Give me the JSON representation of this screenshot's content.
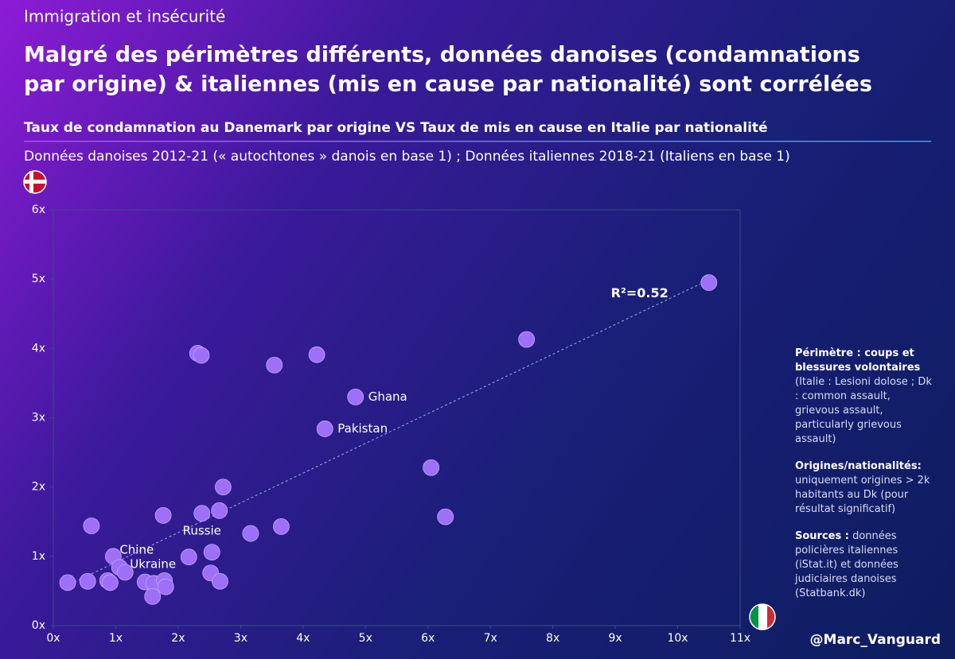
{
  "chart_data": {
    "type": "scatter",
    "kicker": "Immigration et insécurité",
    "title": [
      "Malgré des périmètres différents, données danoises (condamnations",
      "par origine) & italiennes (mis en cause par nationalité) sont corrélées"
    ],
    "subtitle": "Taux de condamnation au Danemark par origine VS Taux de mis en cause en Italie par nationalité",
    "description": "Données danoises 2012-21 (« autochtones » danois en base 1) ; Données italiennes 2018-21 (Italiens en base 1)",
    "x": [
      10.5,
      7.58,
      2.31,
      2.37,
      3.54,
      4.22,
      4.84,
      4.35,
      6.05,
      6.28,
      2.72,
      1.76,
      2.38,
      2.66,
      3.65,
      3.16,
      0.61,
      2.54,
      2.17,
      2.52,
      2.67,
      0.96,
      1.06,
      1.15,
      0.87,
      0.91,
      0.55,
      0.23,
      1.47,
      1.61,
      1.78,
      1.8,
      1.59
    ],
    "values": [
      4.95,
      4.13,
      3.93,
      3.9,
      3.76,
      3.91,
      3.3,
      2.84,
      2.28,
      1.57,
      2.0,
      1.59,
      1.62,
      1.66,
      1.43,
      1.33,
      1.44,
      1.06,
      0.99,
      0.76,
      0.64,
      1.0,
      0.84,
      0.77,
      0.65,
      0.62,
      0.64,
      0.62,
      0.63,
      0.61,
      0.65,
      0.56,
      0.42
    ],
    "point_labels": [
      null,
      null,
      null,
      null,
      null,
      null,
      "Ghana",
      "Pakistan",
      null,
      null,
      null,
      null,
      "Russie",
      null,
      null,
      null,
      null,
      null,
      null,
      null,
      null,
      "Chine",
      null,
      "Ukraine",
      null,
      null,
      null,
      null,
      null,
      null,
      null,
      null,
      null
    ],
    "color": "#9d70f7",
    "trendline": {
      "x": [
        0.13,
        10.36
      ],
      "y": [
        0.54,
        4.93
      ],
      "label": "R²=0.52"
    },
    "xlim": [
      0,
      11
    ],
    "ylim": [
      0,
      6
    ],
    "xticks": [
      {
        "value": 0,
        "label": "0x"
      },
      {
        "value": 1,
        "label": "1x"
      },
      {
        "value": 2,
        "label": "2x"
      },
      {
        "value": 3,
        "label": "3x"
      },
      {
        "value": 4,
        "label": "4x"
      },
      {
        "value": 5,
        "label": "5x"
      },
      {
        "value": 6,
        "label": "6x"
      },
      {
        "value": 7,
        "label": "7x"
      },
      {
        "value": 8,
        "label": "8x"
      },
      {
        "value": 9,
        "label": "9x"
      },
      {
        "value": 10,
        "label": "10x"
      },
      {
        "value": 11,
        "label": "11x"
      }
    ],
    "yticks": [
      {
        "value": 0,
        "label": "0x"
      },
      {
        "value": 1,
        "label": "1x"
      },
      {
        "value": 2,
        "label": "2x"
      },
      {
        "value": 3,
        "label": "3x"
      },
      {
        "value": 4,
        "label": "4x"
      },
      {
        "value": 5,
        "label": "5x"
      },
      {
        "value": 6,
        "label": "6x"
      }
    ],
    "notes": [
      {
        "bold": "Périmètre : coups et blessures volontaires",
        "text": "(Italie : Lesioni dolose ; Dk : common assault, grievous assault, particularly grievous assault)"
      },
      {
        "bold": "Origines/nationalités:",
        "text": "uniquement origines > 2k habitants au Dk (pour résultat significatif)"
      },
      {
        "bold": "Sources :",
        "text": "données policières italiennes (iStat.it) et données judiciaires danoises (Statbank.dk)"
      }
    ],
    "credit": "@Marc_Vanguard"
  }
}
